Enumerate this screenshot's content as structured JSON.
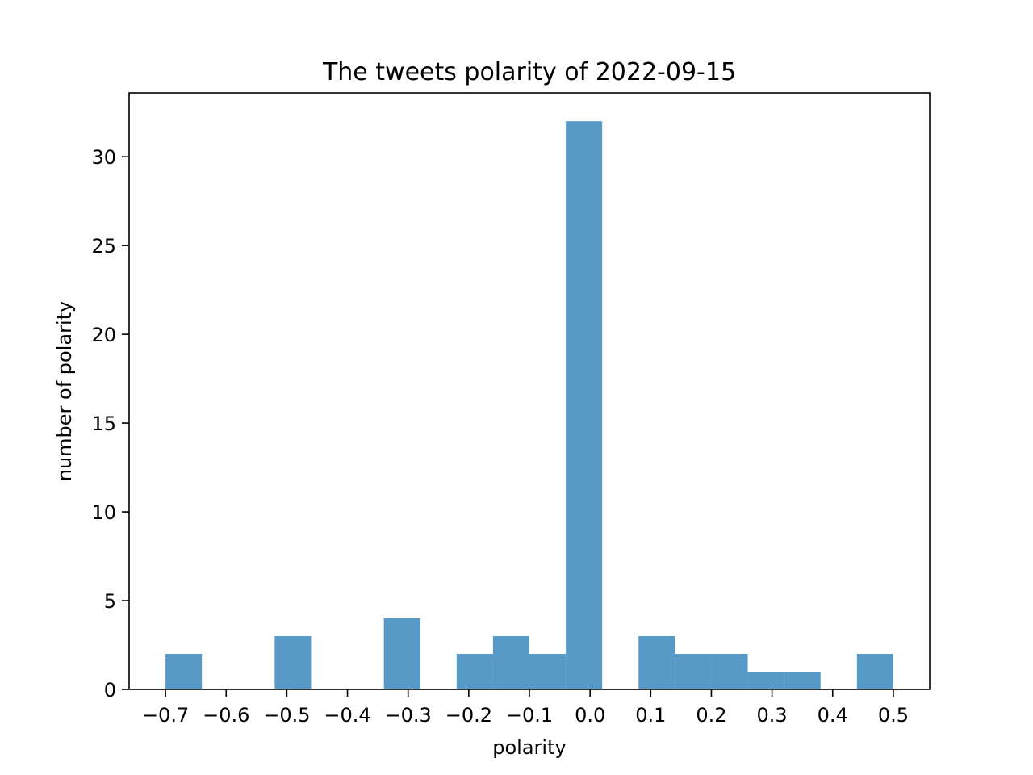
{
  "chart_data": {
    "type": "bar",
    "title": "The tweets polarity of 2022-09-15",
    "xlabel": "polarity",
    "ylabel": "number of polarity",
    "xlim": [
      -0.76,
      0.56
    ],
    "ylim": [
      0,
      33.6
    ],
    "x_ticks": [
      {
        "value": -0.7,
        "label": "−0.7"
      },
      {
        "value": -0.6,
        "label": "−0.6"
      },
      {
        "value": -0.5,
        "label": "−0.5"
      },
      {
        "value": -0.4,
        "label": "−0.4"
      },
      {
        "value": -0.3,
        "label": "−0.3"
      },
      {
        "value": -0.2,
        "label": "−0.2"
      },
      {
        "value": -0.1,
        "label": "−0.1"
      },
      {
        "value": 0.0,
        "label": "0.0"
      },
      {
        "value": 0.1,
        "label": "0.1"
      },
      {
        "value": 0.2,
        "label": "0.2"
      },
      {
        "value": 0.3,
        "label": "0.3"
      },
      {
        "value": 0.4,
        "label": "0.4"
      },
      {
        "value": 0.5,
        "label": "0.5"
      }
    ],
    "y_ticks": [
      {
        "value": 0,
        "label": "0"
      },
      {
        "value": 5,
        "label": "5"
      },
      {
        "value": 10,
        "label": "10"
      },
      {
        "value": 15,
        "label": "15"
      },
      {
        "value": 20,
        "label": "20"
      },
      {
        "value": 25,
        "label": "25"
      },
      {
        "value": 30,
        "label": "30"
      }
    ],
    "bar_color": "#5799c7",
    "bins": [
      {
        "start": -0.7,
        "end": -0.64,
        "count": 2
      },
      {
        "start": -0.64,
        "end": -0.58,
        "count": 0
      },
      {
        "start": -0.58,
        "end": -0.52,
        "count": 0
      },
      {
        "start": -0.52,
        "end": -0.46,
        "count": 3
      },
      {
        "start": -0.46,
        "end": -0.4,
        "count": 0
      },
      {
        "start": -0.4,
        "end": -0.34,
        "count": 0
      },
      {
        "start": -0.34,
        "end": -0.28,
        "count": 4
      },
      {
        "start": -0.28,
        "end": -0.22,
        "count": 0
      },
      {
        "start": -0.22,
        "end": -0.16,
        "count": 2
      },
      {
        "start": -0.16,
        "end": -0.1,
        "count": 3
      },
      {
        "start": -0.1,
        "end": -0.04,
        "count": 2
      },
      {
        "start": -0.04,
        "end": 0.02,
        "count": 32
      },
      {
        "start": 0.02,
        "end": 0.08,
        "count": 0
      },
      {
        "start": 0.08,
        "end": 0.14,
        "count": 3
      },
      {
        "start": 0.14,
        "end": 0.2,
        "count": 2
      },
      {
        "start": 0.2,
        "end": 0.26,
        "count": 2
      },
      {
        "start": 0.26,
        "end": 0.32,
        "count": 1
      },
      {
        "start": 0.32,
        "end": 0.38,
        "count": 1
      },
      {
        "start": 0.38,
        "end": 0.44,
        "count": 0
      },
      {
        "start": 0.44,
        "end": 0.5,
        "count": 2
      }
    ],
    "grid": false,
    "legend": "none"
  }
}
